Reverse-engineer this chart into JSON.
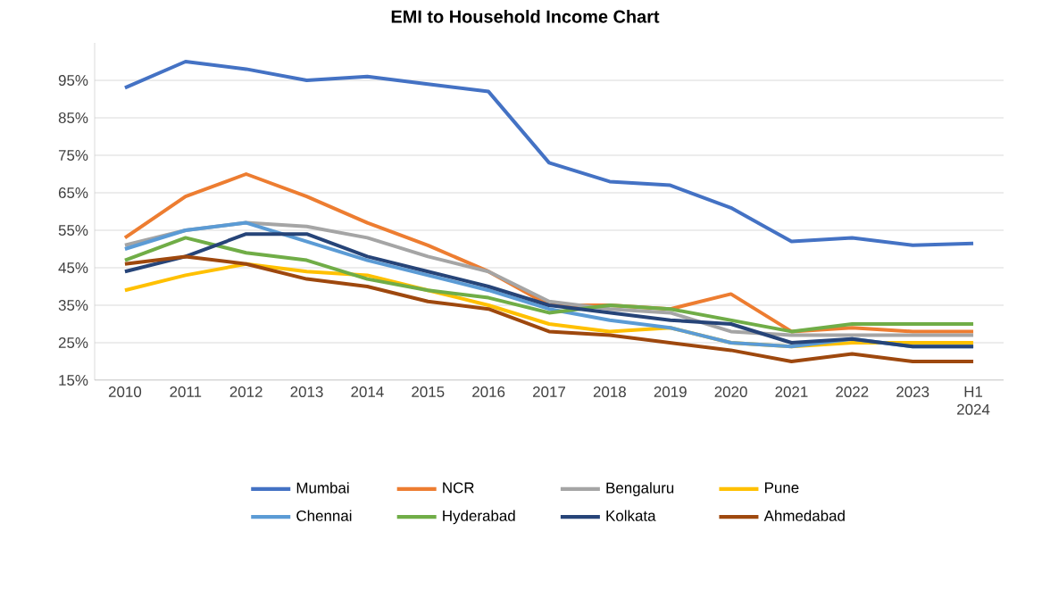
{
  "chart_data": {
    "type": "line",
    "title": "EMI to Household Income Chart",
    "categories": [
      "2010",
      "2011",
      "2012",
      "2013",
      "2014",
      "2015",
      "2016",
      "2017",
      "2018",
      "2019",
      "2020",
      "2021",
      "2022",
      "2023",
      "H1 2024"
    ],
    "series": [
      {
        "name": "Mumbai",
        "color": "#4472c4",
        "values": [
          93,
          100,
          98,
          95,
          96,
          94,
          92,
          73,
          68,
          67,
          61,
          52,
          53,
          51,
          51.5
        ]
      },
      {
        "name": "NCR",
        "color": "#ed7d31",
        "values": [
          53,
          64,
          70,
          64,
          57,
          51,
          44,
          35,
          35,
          34,
          38,
          28,
          29,
          28,
          28
        ]
      },
      {
        "name": "Bengaluru",
        "color": "#a5a5a5",
        "values": [
          51,
          55,
          57,
          56,
          53,
          48,
          44,
          36,
          34,
          33,
          28,
          27,
          27,
          27,
          27
        ]
      },
      {
        "name": "Pune",
        "color": "#ffc000",
        "values": [
          39,
          43,
          46,
          44,
          43,
          39,
          35,
          30,
          28,
          29,
          25,
          24,
          25,
          25,
          25
        ]
      },
      {
        "name": "Chennai",
        "color": "#5b9bd5",
        "values": [
          50,
          55,
          57,
          52,
          47,
          43,
          39,
          34,
          31,
          29,
          25,
          24,
          26,
          24,
          24
        ]
      },
      {
        "name": "Hyderabad",
        "color": "#70ad47",
        "values": [
          47,
          53,
          49,
          47,
          42,
          39,
          37,
          33,
          35,
          34,
          31,
          28,
          30,
          30,
          30
        ]
      },
      {
        "name": "Kolkata",
        "color": "#264478",
        "values": [
          44,
          48,
          54,
          54,
          48,
          44,
          40,
          35,
          33,
          31,
          30,
          25,
          26,
          24,
          24
        ]
      },
      {
        "name": "Ahmedabad",
        "color": "#9e480e",
        "values": [
          46,
          48,
          46,
          42,
          40,
          36,
          34,
          28,
          27,
          25,
          23,
          20,
          22,
          20,
          20
        ]
      }
    ],
    "ylim": [
      15,
      105
    ],
    "yticks": [
      {
        "value": 15,
        "label": "15%"
      },
      {
        "value": 25,
        "label": "25%"
      },
      {
        "value": 35,
        "label": "35%"
      },
      {
        "value": 45,
        "label": "45%"
      },
      {
        "value": 55,
        "label": "55%"
      },
      {
        "value": 65,
        "label": "65%"
      },
      {
        "value": 75,
        "label": "75%"
      },
      {
        "value": 85,
        "label": "85%"
      },
      {
        "value": 95,
        "label": "95%"
      }
    ],
    "grid": "y",
    "legend": "bottom",
    "line_style": "solid"
  }
}
